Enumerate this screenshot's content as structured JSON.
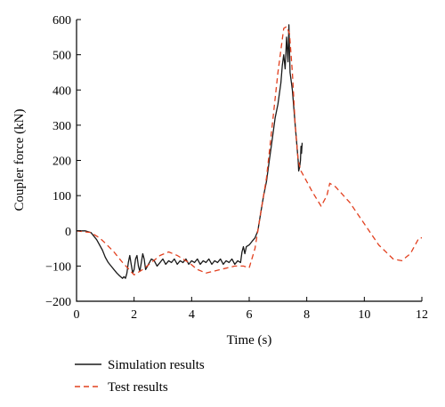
{
  "chart_data": {
    "type": "line",
    "xlabel": "Time (s)",
    "ylabel": "Coupler force (kN)",
    "xlim": [
      0,
      12
    ],
    "ylim": [
      -200,
      600
    ],
    "xticks": [
      0,
      2,
      4,
      6,
      8,
      10,
      12
    ],
    "yticks": [
      -200,
      -100,
      0,
      100,
      200,
      300,
      400,
      500,
      600
    ],
    "grid": false,
    "legend_position": "bottom-left, below plot",
    "series": [
      {
        "name": "Simulation results",
        "color": "#1a1a1a",
        "dash": "solid",
        "points": [
          [
            0,
            0
          ],
          [
            0.3,
            0
          ],
          [
            0.5,
            -5
          ],
          [
            0.7,
            -25
          ],
          [
            0.9,
            -55
          ],
          [
            1.0,
            -75
          ],
          [
            1.1,
            -90
          ],
          [
            1.2,
            -100
          ],
          [
            1.3,
            -110
          ],
          [
            1.4,
            -120
          ],
          [
            1.5,
            -128
          ],
          [
            1.6,
            -135
          ],
          [
            1.65,
            -130
          ],
          [
            1.7,
            -135
          ],
          [
            1.75,
            -120
          ],
          [
            1.8,
            -90
          ],
          [
            1.85,
            -70
          ],
          [
            1.9,
            -95
          ],
          [
            1.95,
            -120
          ],
          [
            2.0,
            -110
          ],
          [
            2.05,
            -80
          ],
          [
            2.1,
            -70
          ],
          [
            2.15,
            -100
          ],
          [
            2.2,
            -115
          ],
          [
            2.25,
            -90
          ],
          [
            2.3,
            -65
          ],
          [
            2.35,
            -80
          ],
          [
            2.4,
            -110
          ],
          [
            2.5,
            -95
          ],
          [
            2.6,
            -80
          ],
          [
            2.7,
            -85
          ],
          [
            2.8,
            -100
          ],
          [
            2.9,
            -90
          ],
          [
            3.0,
            -80
          ],
          [
            3.1,
            -95
          ],
          [
            3.2,
            -85
          ],
          [
            3.3,
            -90
          ],
          [
            3.4,
            -80
          ],
          [
            3.5,
            -95
          ],
          [
            3.6,
            -85
          ],
          [
            3.7,
            -90
          ],
          [
            3.8,
            -80
          ],
          [
            3.9,
            -95
          ],
          [
            4.0,
            -85
          ],
          [
            4.1,
            -90
          ],
          [
            4.2,
            -80
          ],
          [
            4.3,
            -95
          ],
          [
            4.4,
            -85
          ],
          [
            4.5,
            -90
          ],
          [
            4.6,
            -80
          ],
          [
            4.7,
            -95
          ],
          [
            4.8,
            -85
          ],
          [
            4.9,
            -90
          ],
          [
            5.0,
            -80
          ],
          [
            5.1,
            -95
          ],
          [
            5.2,
            -85
          ],
          [
            5.3,
            -90
          ],
          [
            5.4,
            -80
          ],
          [
            5.5,
            -95
          ],
          [
            5.6,
            -85
          ],
          [
            5.7,
            -90
          ],
          [
            5.75,
            -60
          ],
          [
            5.8,
            -45
          ],
          [
            5.85,
            -65
          ],
          [
            5.9,
            -45
          ],
          [
            6.0,
            -40
          ],
          [
            6.1,
            -30
          ],
          [
            6.2,
            -20
          ],
          [
            6.3,
            0
          ],
          [
            6.4,
            50
          ],
          [
            6.5,
            100
          ],
          [
            6.6,
            140
          ],
          [
            6.7,
            200
          ],
          [
            6.8,
            260
          ],
          [
            6.9,
            320
          ],
          [
            7.0,
            360
          ],
          [
            7.1,
            420
          ],
          [
            7.15,
            470
          ],
          [
            7.2,
            500
          ],
          [
            7.25,
            460
          ],
          [
            7.3,
            550
          ],
          [
            7.35,
            480
          ],
          [
            7.38,
            585
          ],
          [
            7.42,
            450
          ],
          [
            7.5,
            400
          ],
          [
            7.6,
            300
          ],
          [
            7.7,
            200
          ],
          [
            7.72,
            170
          ],
          [
            7.75,
            180
          ],
          [
            7.78,
            200
          ],
          [
            7.8,
            240
          ],
          [
            7.82,
            220
          ],
          [
            7.84,
            250
          ]
        ]
      },
      {
        "name": "Test results",
        "color": "#e2401f",
        "dash": "dashed",
        "points": [
          [
            0,
            0
          ],
          [
            0.5,
            -5
          ],
          [
            0.8,
            -20
          ],
          [
            1.0,
            -35
          ],
          [
            1.3,
            -60
          ],
          [
            1.6,
            -90
          ],
          [
            2.0,
            -125
          ],
          [
            2.3,
            -110
          ],
          [
            2.6,
            -90
          ],
          [
            2.9,
            -70
          ],
          [
            3.2,
            -60
          ],
          [
            3.5,
            -70
          ],
          [
            3.9,
            -90
          ],
          [
            4.2,
            -110
          ],
          [
            4.5,
            -120
          ],
          [
            5.0,
            -110
          ],
          [
            5.5,
            -100
          ],
          [
            5.8,
            -100
          ],
          [
            6.0,
            -105
          ],
          [
            6.2,
            -50
          ],
          [
            6.4,
            50
          ],
          [
            6.6,
            150
          ],
          [
            6.8,
            300
          ],
          [
            7.0,
            450
          ],
          [
            7.2,
            575
          ],
          [
            7.3,
            580
          ],
          [
            7.4,
            560
          ],
          [
            7.5,
            450
          ],
          [
            7.6,
            300
          ],
          [
            7.7,
            200
          ],
          [
            7.8,
            170
          ],
          [
            8.0,
            140
          ],
          [
            8.2,
            110
          ],
          [
            8.5,
            70
          ],
          [
            8.7,
            100
          ],
          [
            8.8,
            135
          ],
          [
            9.0,
            125
          ],
          [
            9.5,
            80
          ],
          [
            10.0,
            20
          ],
          [
            10.5,
            -40
          ],
          [
            11.0,
            -80
          ],
          [
            11.3,
            -85
          ],
          [
            11.6,
            -65
          ],
          [
            11.9,
            -20
          ],
          [
            12.0,
            -20
          ]
        ]
      }
    ]
  }
}
